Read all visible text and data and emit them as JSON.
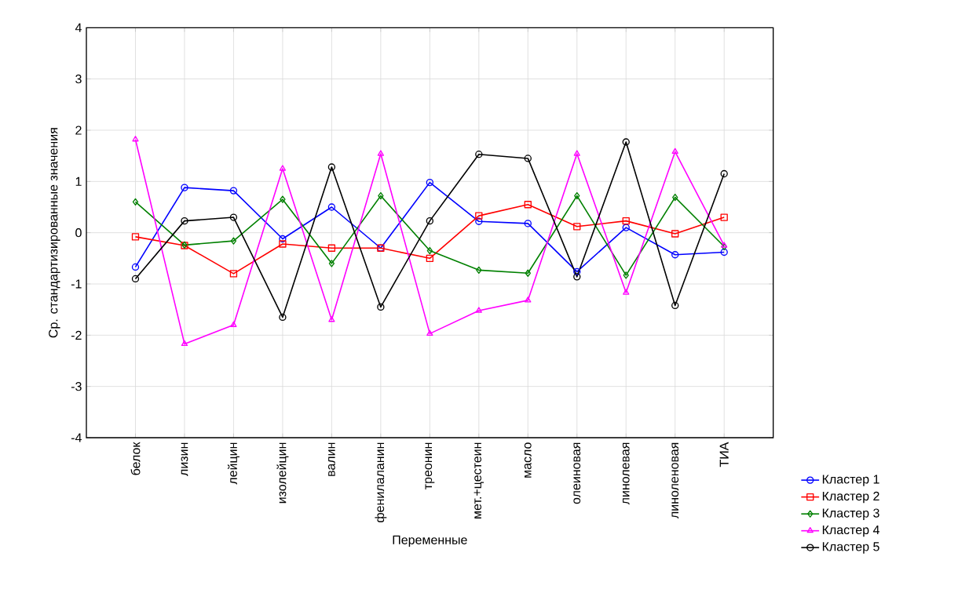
{
  "chart_data": {
    "type": "line",
    "xlabel": "Переменные",
    "ylabel": "Ср. стандартизированные значения",
    "categories": [
      "белок",
      "лизин",
      "лейцин",
      "изолейцин",
      "валин",
      "фенилаланин",
      "треонин",
      "мет.+цестеин",
      "масло",
      "олеиновая",
      "линолевая",
      "линоленовая",
      "ТИА"
    ],
    "ylim": [
      -4,
      4
    ],
    "yticks": [
      -4,
      -3,
      -2,
      -1,
      0,
      1,
      2,
      3,
      4
    ],
    "grid": true,
    "legend": "bottom right",
    "line_style": "solid",
    "series": [
      {
        "name": "Кластер  1",
        "color": "#0000ff",
        "marker": "circle",
        "values": [
          -0.67,
          0.88,
          0.82,
          -0.12,
          0.5,
          -0.3,
          0.98,
          0.22,
          0.18,
          -0.76,
          0.1,
          -0.43,
          -0.38
        ]
      },
      {
        "name": "Кластер  2",
        "color": "#ff0000",
        "marker": "square",
        "values": [
          -0.08,
          -0.25,
          -0.8,
          -0.22,
          -0.3,
          -0.3,
          -0.5,
          0.33,
          0.55,
          0.12,
          0.23,
          -0.02,
          0.3
        ]
      },
      {
        "name": "Кластер  3",
        "color": "#008000",
        "marker": "diamond",
        "values": [
          0.6,
          -0.24,
          -0.16,
          0.65,
          -0.6,
          0.72,
          -0.35,
          -0.73,
          -0.79,
          0.72,
          -0.83,
          0.69,
          -0.27
        ]
      },
      {
        "name": "Кластер  4",
        "color": "#ff00ff",
        "marker": "triangle",
        "values": [
          1.82,
          -2.17,
          -1.8,
          1.25,
          -1.7,
          1.54,
          -1.97,
          -1.52,
          -1.32,
          1.54,
          -1.17,
          1.58,
          -0.25
        ]
      },
      {
        "name": "Кластер  5",
        "color": "#000000",
        "marker": "circle",
        "values": [
          -0.9,
          0.23,
          0.3,
          -1.65,
          1.28,
          -1.45,
          0.23,
          1.53,
          1.45,
          -0.86,
          1.77,
          -1.42,
          1.15
        ]
      }
    ]
  }
}
